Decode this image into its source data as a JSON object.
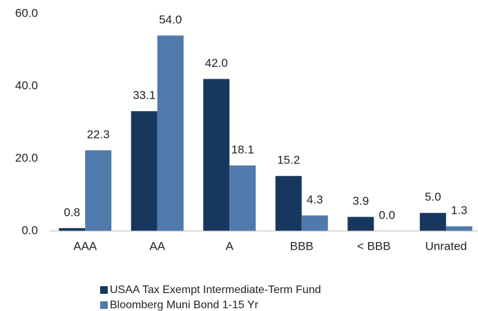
{
  "chart_data": {
    "type": "bar",
    "categories": [
      "AAA",
      "AA",
      "A",
      "BBB",
      "< BBB",
      "Unrated"
    ],
    "series": [
      {
        "name": "USAA Tax Exempt Intermediate-Term Fund",
        "color": "#17375e",
        "values": [
          0.8,
          33.1,
          42.0,
          15.2,
          3.9,
          5.0
        ],
        "value_labels": [
          "0.8",
          "33.1",
          "42.0",
          "15.2",
          "3.9",
          "5.0"
        ]
      },
      {
        "name": "Bloomberg Muni Bond 1-15 Yr",
        "color": "#4f7aab",
        "values": [
          22.3,
          54.0,
          18.1,
          4.3,
          0.0,
          1.3
        ],
        "value_labels": [
          "22.3",
          "54.0",
          "18.1",
          "4.3",
          "0.0",
          "1.3"
        ]
      }
    ],
    "ylim": [
      0,
      60
    ],
    "yticks": [
      {
        "value": 0,
        "label": "0.0"
      },
      {
        "value": 20,
        "label": "20.0"
      },
      {
        "value": 40,
        "label": "40.0"
      },
      {
        "value": 60,
        "label": "60.0"
      }
    ],
    "grid": false,
    "legend": "bottom"
  }
}
